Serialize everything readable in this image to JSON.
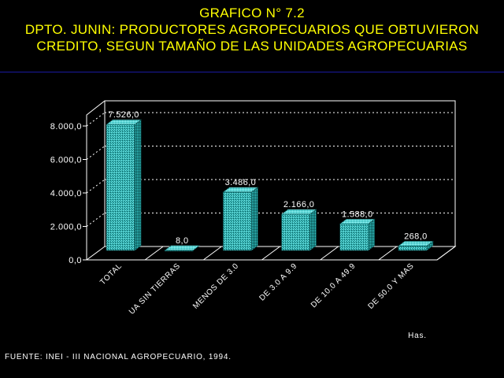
{
  "title": {
    "line1": "GRAFICO N° 7.2",
    "line2": "DPTO. JUNIN: PRODUCTORES AGROPECUARIOS QUE OBTUVIERON",
    "line3": "CREDITO, SEGUN TAMAÑO DE LAS UNIDADES AGROPECUARIAS"
  },
  "source": "FUENTE: INEI - III NACIONAL AGROPECUARIO, 1994.",
  "colors": {
    "title": "#ffff00",
    "bar": "#3fd1d1",
    "text": "#ffffff",
    "rule": "#1a1aa0"
  },
  "chart_data": {
    "type": "bar",
    "title": "",
    "xlabel": "Has.",
    "ylabel": "",
    "ylim": [
      0,
      8000
    ],
    "yticks": [
      0,
      2000,
      4000,
      6000,
      8000
    ],
    "ytick_labels": [
      "0,0",
      "2.000,0",
      "4.000,0",
      "6.000,0",
      "8.000,0"
    ],
    "grid": true,
    "categories": [
      "TOTAL",
      "UA SIN TIERRAS",
      "MENOS DE 3.0",
      "DE 3.0 A 9.9",
      "DE 10.0 A 49.9",
      "DE 50.0 Y MAS"
    ],
    "values": [
      7526,
      8,
      3486,
      2166,
      1588,
      268
    ],
    "value_labels": [
      "7.526,0",
      "8,0",
      "3.486,0",
      "2.166,0",
      "1.588,0",
      "268,0"
    ]
  }
}
